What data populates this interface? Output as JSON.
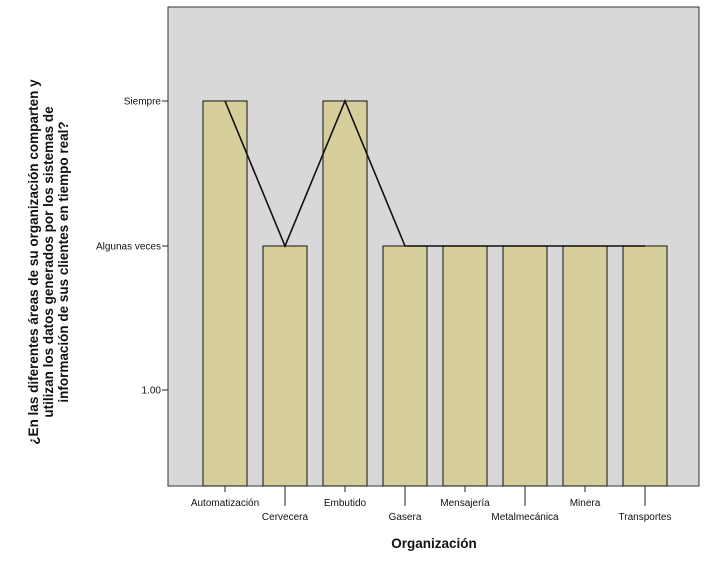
{
  "chart_data": {
    "type": "bar",
    "title": "",
    "xlabel": "Organización",
    "ylabel_lines": [
      "¿En las diferentes áreas de su organización comparten y",
      "utilizan los datos generados por los sistemas de",
      "información de sus clientes en tiempo real?"
    ],
    "y_scale": "ordinal",
    "y_levels": [
      "1.00",
      "Algunas veces",
      "Siempre"
    ],
    "categories": [
      "Automatización",
      "Cervecera",
      "Embutido",
      "Gasera",
      "Mensajería",
      "Metalmecánica",
      "Minera",
      "Transportes"
    ],
    "values": [
      "Siempre",
      "Algunas veces",
      "Siempre",
      "Algunas veces",
      "Algunas veces",
      "Algunas veces",
      "Algunas veces",
      "Algunas veces"
    ],
    "overlay": "line",
    "grid": false,
    "legend": "none",
    "colors": {
      "plot_bg": "#d8d8d8",
      "bar_fill": "#d6cf9c",
      "bar_stroke": "#222222",
      "line": "#111111",
      "frame": "#333333"
    }
  }
}
